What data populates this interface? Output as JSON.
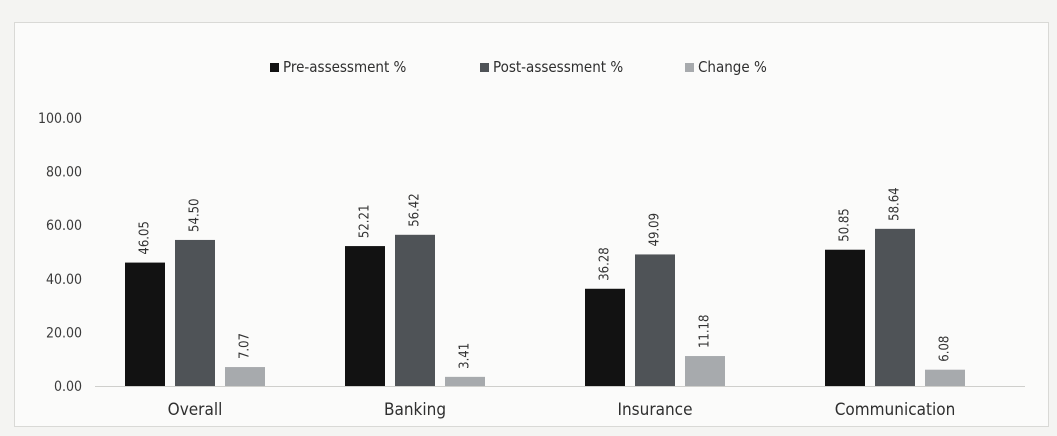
{
  "chart_data": {
    "type": "bar",
    "categories": [
      "Overall",
      "Banking",
      "Insurance",
      "Communication"
    ],
    "series": [
      {
        "name": "Pre-assessment %",
        "values": [
          46.05,
          52.21,
          36.28,
          50.85
        ],
        "labels": [
          "46.05",
          "52.21",
          "36.28",
          "50.85"
        ],
        "color": "#121212"
      },
      {
        "name": "Post-assessment %",
        "values": [
          54.5,
          56.42,
          49.09,
          58.64
        ],
        "labels": [
          "54.50",
          "56.42",
          "49.09",
          "58.64"
        ],
        "color": "#4f5357"
      },
      {
        "name": "Change %",
        "values": [
          7.07,
          3.41,
          11.18,
          6.08
        ],
        "labels": [
          "7.07",
          "3.41",
          "11.18",
          "6.08"
        ],
        "color": "#a7aaad"
      }
    ],
    "ylim": [
      0,
      100
    ],
    "yticks": [
      "0.00",
      "20.00",
      "40.00",
      "60.00",
      "80.00",
      "100.00"
    ],
    "legend_position": "top-center",
    "grid": false
  }
}
